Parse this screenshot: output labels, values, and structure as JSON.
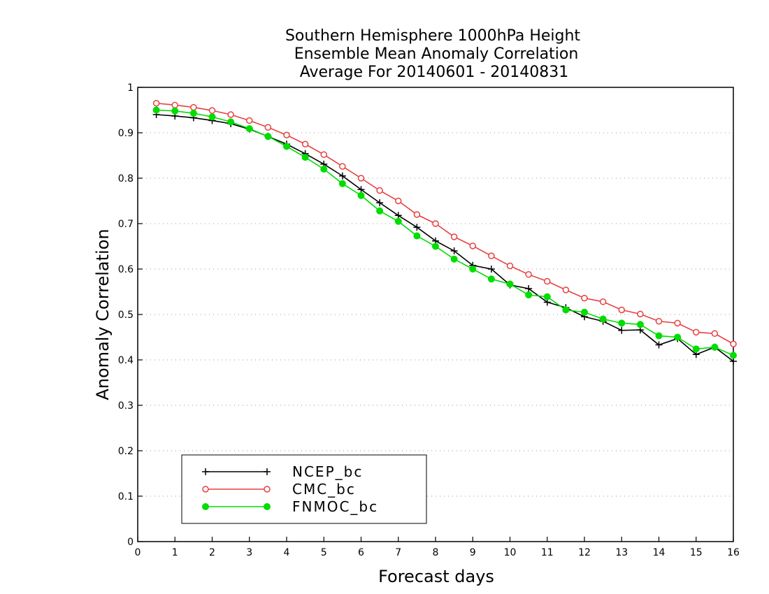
{
  "chart_data": {
    "type": "line",
    "title": [
      "Southern Hemisphere 1000hPa Height",
      "Ensemble Mean Anomaly Correlation",
      "Average For 20140601 - 20140831"
    ],
    "xlabel": "Forecast days",
    "ylabel": "Anomaly Correlation",
    "xlim": [
      0,
      16
    ],
    "ylim": [
      0,
      1
    ],
    "xticks": [
      "0",
      "1",
      "2",
      "3",
      "4",
      "5",
      "6",
      "7",
      "8",
      "9",
      "10",
      "11",
      "12",
      "13",
      "14",
      "15",
      "16"
    ],
    "yticks": [
      "0",
      "0.1",
      "0.2",
      "0.3",
      "0.4",
      "0.5",
      "0.6",
      "0.7",
      "0.8",
      "0.9",
      "1"
    ],
    "grid": true,
    "legend_position": "bottom-left",
    "x": [
      0.5,
      1,
      1.5,
      2,
      2.5,
      3,
      3.5,
      4,
      4.5,
      5,
      5.5,
      6,
      6.5,
      7,
      7.5,
      8,
      8.5,
      9,
      9.5,
      10,
      10.5,
      11,
      11.5,
      12,
      12.5,
      13,
      13.5,
      14,
      14.5,
      15,
      15.5,
      16
    ],
    "series": [
      {
        "name": "NCEP_bc",
        "color": "#000000",
        "marker": "plus",
        "values": [
          0.94,
          0.937,
          0.933,
          0.927,
          0.92,
          0.908,
          0.892,
          0.875,
          0.854,
          0.831,
          0.805,
          0.775,
          0.746,
          0.718,
          0.692,
          0.662,
          0.64,
          0.608,
          0.6,
          0.565,
          0.557,
          0.527,
          0.515,
          0.495,
          0.485,
          0.465,
          0.466,
          0.433,
          0.447,
          0.412,
          0.428,
          0.397
        ]
      },
      {
        "name": "CMC_bc",
        "color": "#e84040",
        "marker": "open-circle",
        "values": [
          0.965,
          0.961,
          0.956,
          0.949,
          0.94,
          0.927,
          0.912,
          0.895,
          0.875,
          0.852,
          0.826,
          0.8,
          0.773,
          0.75,
          0.72,
          0.7,
          0.671,
          0.651,
          0.629,
          0.607,
          0.588,
          0.573,
          0.554,
          0.536,
          0.528,
          0.51,
          0.501,
          0.485,
          0.481,
          0.461,
          0.458,
          0.435
        ]
      },
      {
        "name": "FNMOC_bc",
        "color": "#00dd00",
        "marker": "filled-circle",
        "values": [
          0.95,
          0.948,
          0.943,
          0.935,
          0.924,
          0.909,
          0.892,
          0.87,
          0.846,
          0.82,
          0.788,
          0.762,
          0.728,
          0.705,
          0.673,
          0.65,
          0.622,
          0.6,
          0.578,
          0.567,
          0.543,
          0.539,
          0.51,
          0.505,
          0.49,
          0.481,
          0.478,
          0.453,
          0.45,
          0.424,
          0.428,
          0.41
        ]
      }
    ]
  }
}
